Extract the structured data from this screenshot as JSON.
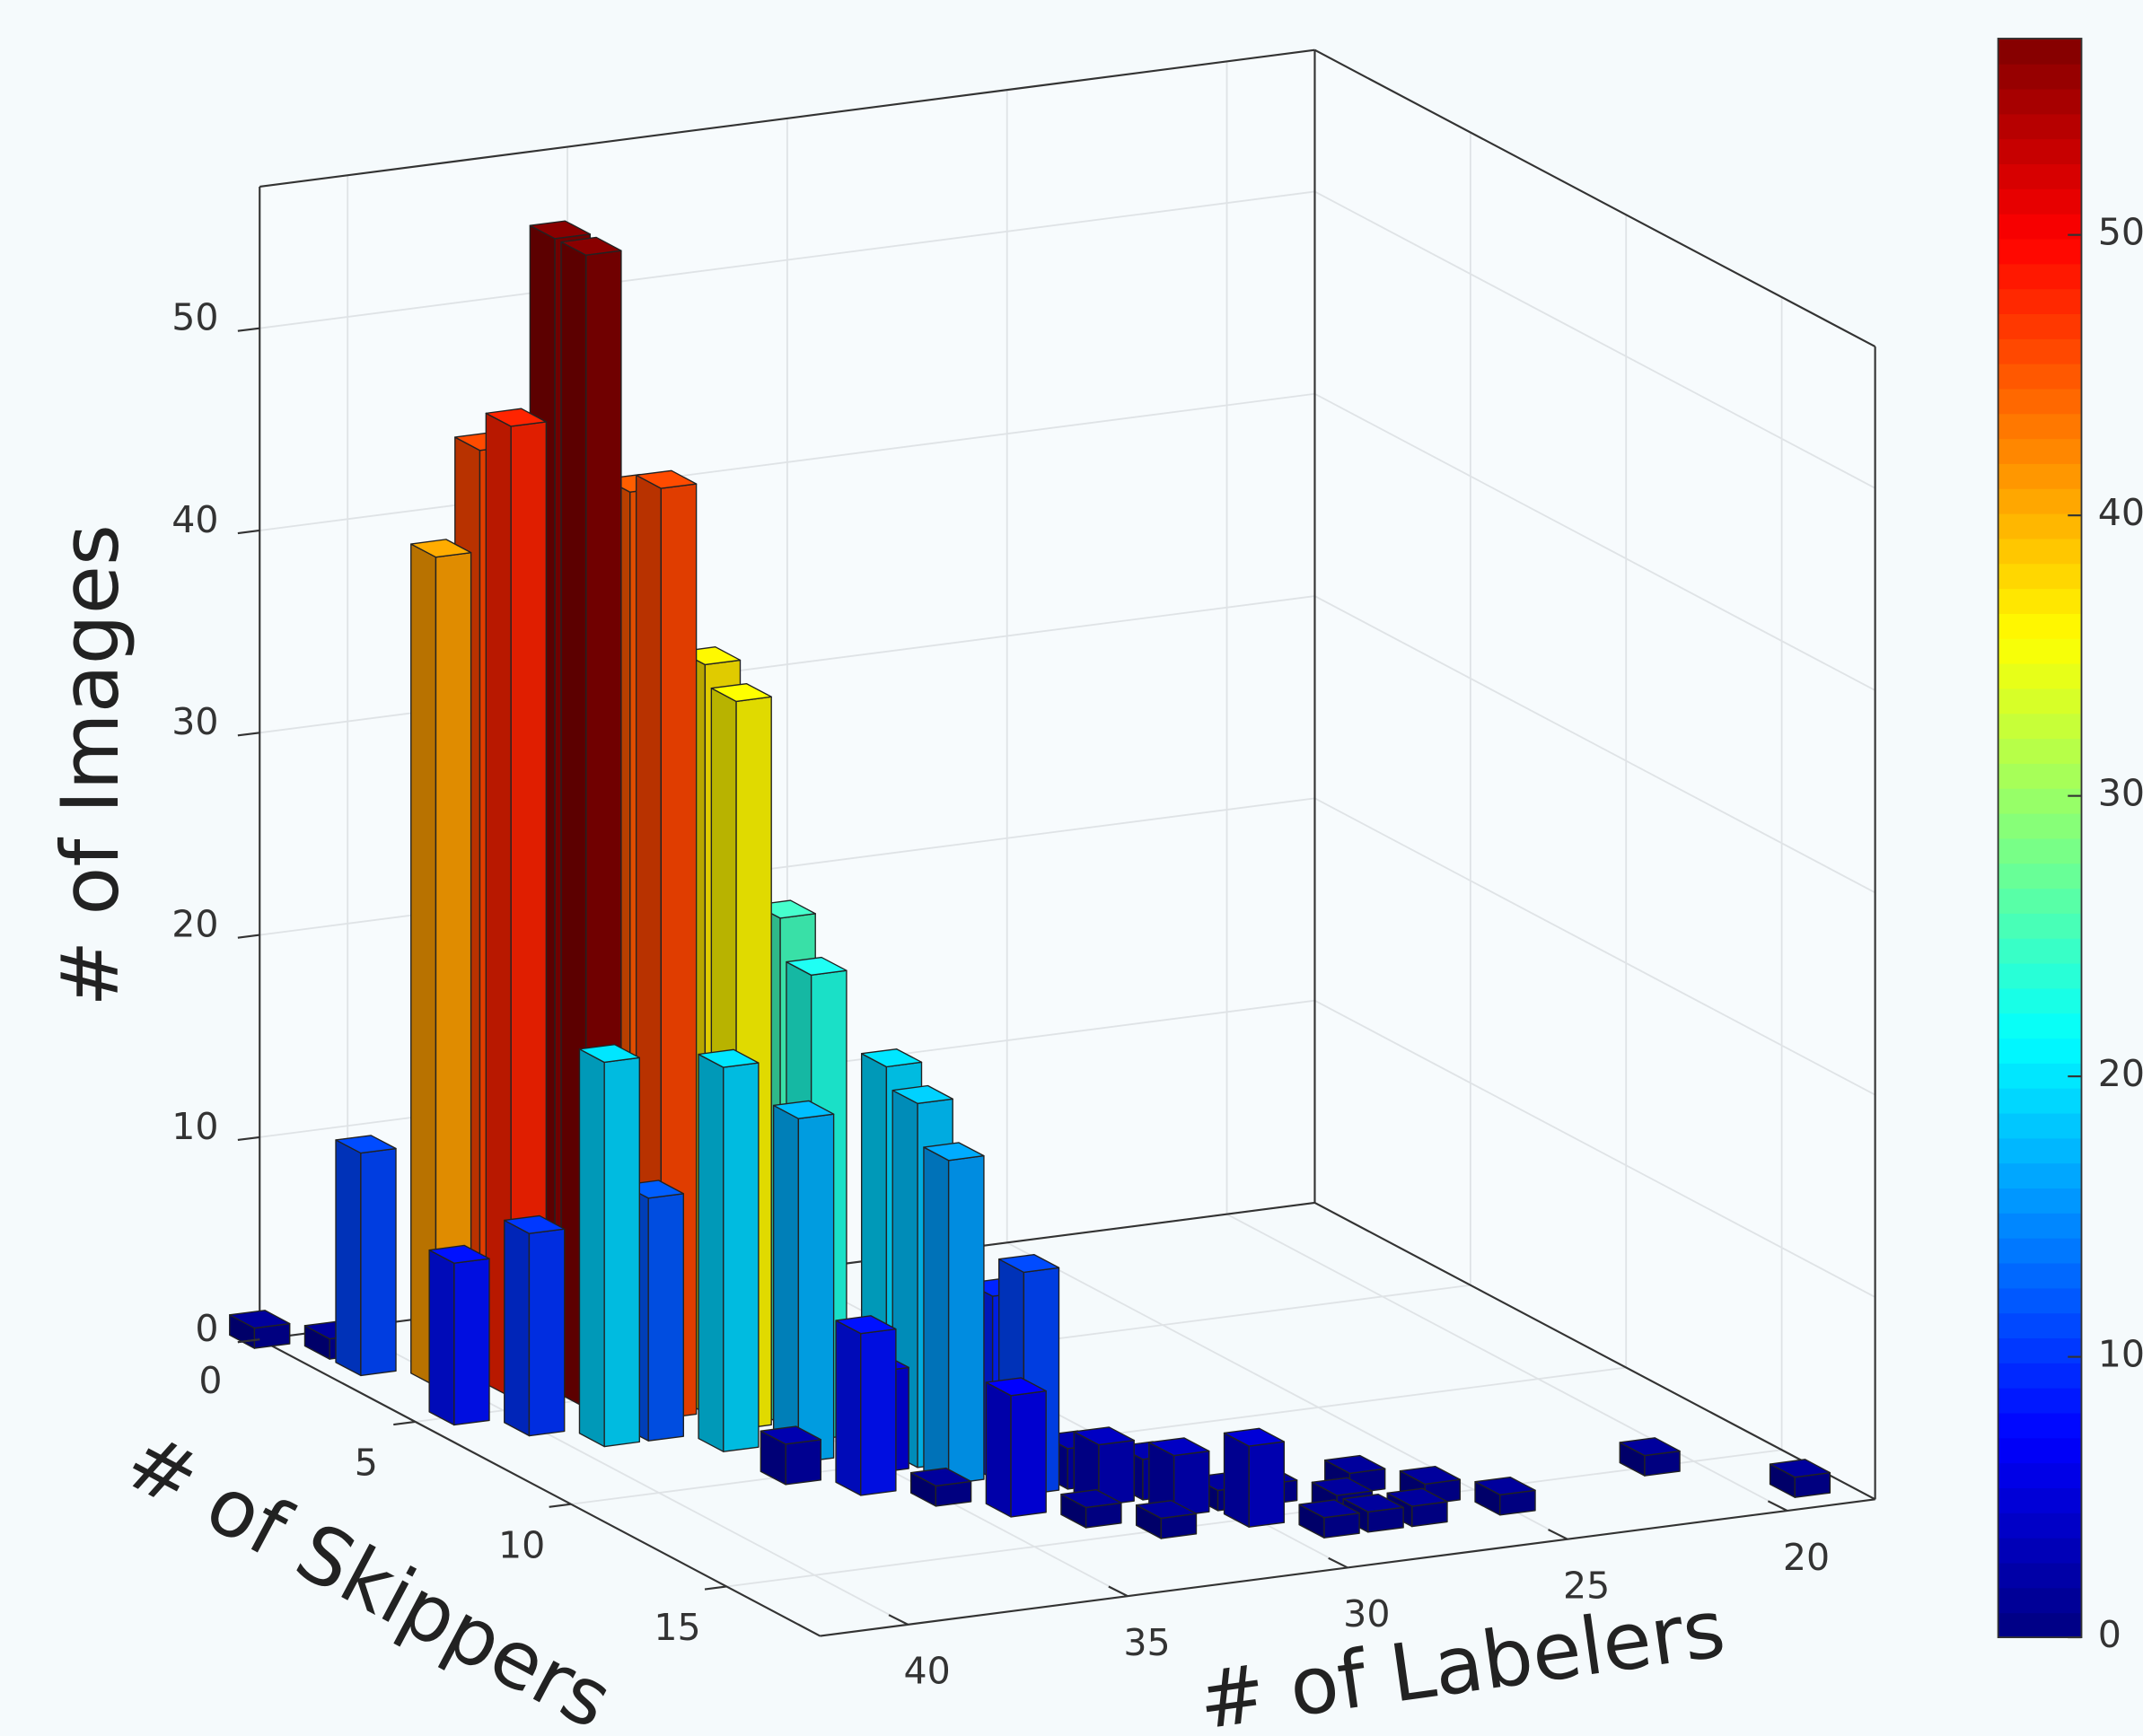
{
  "chart_data": {
    "type": "bar3d",
    "xlabel": "# of Labelers",
    "ylabel": "# of Skippers",
    "zlabel": "# of Images",
    "x": [
      42,
      41,
      41,
      40,
      39,
      39,
      38,
      38,
      37,
      37,
      41,
      40,
      39,
      38,
      37,
      36,
      36,
      35,
      35,
      34,
      34,
      36,
      35,
      37,
      36,
      34,
      33,
      33,
      35,
      34,
      32,
      32,
      31,
      31,
      30,
      30,
      29,
      28,
      27,
      27,
      26,
      25,
      21,
      19,
      29,
      28,
      33,
      32
    ],
    "y": [
      0,
      1,
      2,
      3,
      3,
      4,
      4,
      5,
      5,
      6,
      5,
      6,
      7,
      7,
      8,
      6,
      7,
      7,
      8,
      9,
      10,
      9,
      10,
      10,
      11,
      11,
      12,
      11,
      12,
      13,
      12,
      13,
      13,
      14,
      14,
      15,
      14,
      15,
      14,
      16,
      15,
      16,
      15,
      17,
      16,
      16,
      14,
      15
    ],
    "values": [
      1,
      1,
      11,
      41,
      46,
      48,
      57,
      57,
      45,
      46,
      8,
      10,
      19,
      12,
      19,
      37,
      36,
      25,
      23,
      19,
      18,
      17,
      5,
      2,
      8,
      16,
      11,
      9,
      1,
      6,
      2,
      3,
      2,
      3,
      1,
      4,
      1,
      1,
      1,
      1,
      1,
      1,
      1,
      1,
      1,
      1,
      1,
      1
    ],
    "xlim": [
      18,
      42
    ],
    "xdir": "reverse",
    "xticks": [
      20,
      25,
      30,
      35,
      40
    ],
    "ylim": [
      0,
      18
    ],
    "yticks": [
      0,
      5,
      10,
      15
    ],
    "zlim": [
      0,
      57
    ],
    "zticks": [
      0,
      10,
      20,
      30,
      40,
      50
    ],
    "colormap": "jet",
    "clim": [
      0,
      57
    ],
    "colorbar_ticks": [
      0,
      10,
      20,
      30,
      40,
      50
    ],
    "grid": true
  }
}
